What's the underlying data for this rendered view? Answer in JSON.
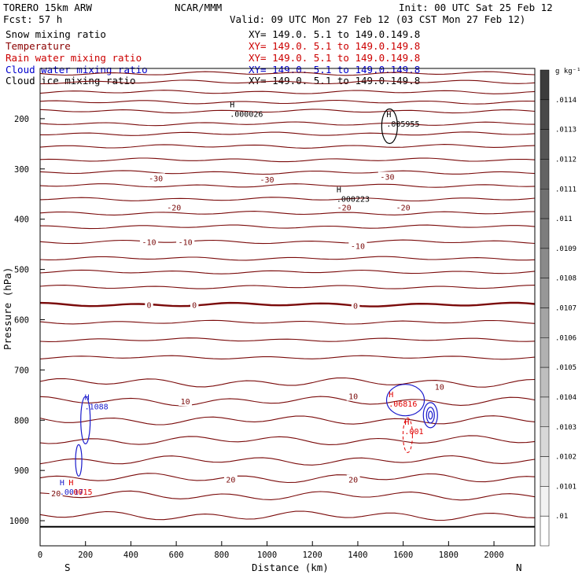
{
  "header": {
    "model": "TORERO   15km ARW",
    "center": "NCAR/MMM",
    "init": "Init: 00 UTC Sat 25 Feb 12",
    "fcst": "Fcst:    57 h",
    "valid": "Valid: 09 UTC Mon 27 Feb 12 (03 CST Mon 27 Feb 12)"
  },
  "legend": [
    {
      "name": "Snow mixing ratio",
      "color": "#000000",
      "xy": "XY= 149.0.   5.1 to 149.0.149.8"
    },
    {
      "name": "Temperature",
      "color": "#8b0000",
      "xy": "XY= 149.0.   5.1 to 149.0.149.8"
    },
    {
      "name": "Rain water mixing ratio",
      "color": "#cc0000",
      "xy": "XY= 149.0.   5.1 to 149.0.149.8"
    },
    {
      "name": "Cloud water mixing ratio",
      "color": "#0000cc",
      "xy": "XY= 149.0.   5.1 to 149.0.149.8"
    },
    {
      "name": "Cloud ice mixing ratio",
      "color": "#000000",
      "xy": "XY= 149.0.   5.1 to 149.0.149.8"
    }
  ],
  "colors": {
    "temperature": "#7a0a0a",
    "rain": "#e00000",
    "cloud_water": "#1a1acc",
    "snow": "#000000",
    "ground": "#000000"
  },
  "chart_data": {
    "type": "contour",
    "xlabel": "Distance (km)",
    "ylabel": "Pressure (hPa)",
    "xlim": [
      0,
      2180
    ],
    "ylim": [
      1050,
      100
    ],
    "x_ticks": [
      0,
      200,
      400,
      600,
      800,
      1000,
      1200,
      1400,
      1600,
      1800,
      2000
    ],
    "y_ticks": [
      200,
      300,
      400,
      500,
      600,
      700,
      800,
      900,
      1000
    ],
    "endpoints": {
      "left": "S",
      "right": "N"
    },
    "colorbar": {
      "unit": "g kg⁻¹",
      "labels": [
        ".0114",
        ".0113",
        ".0112",
        ".0111",
        ".011",
        ".0109",
        ".0108",
        ".0107",
        ".0106",
        ".0105",
        ".0104",
        ".0103",
        ".0102",
        ".0101",
        ".01"
      ]
    },
    "temperature_contours": {
      "interval_c": 5,
      "levels_hpa": [
        110,
        127,
        147,
        167,
        185,
        210,
        230,
        255,
        282,
        307,
        333,
        360,
        388,
        415,
        445,
        478,
        505,
        535,
        570,
        605,
        640,
        675,
        725,
        762,
        800,
        840,
        880,
        915,
        950,
        990
      ],
      "labels": [
        {
          "text": "-30",
          "x": 510,
          "p": 318
        },
        {
          "text": "-30",
          "x": 1000,
          "p": 321
        },
        {
          "text": "-30",
          "x": 1530,
          "p": 315
        },
        {
          "text": "-20",
          "x": 590,
          "p": 376
        },
        {
          "text": "-20",
          "x": 1340,
          "p": 376
        },
        {
          "text": "-20",
          "x": 1600,
          "p": 376
        },
        {
          "text": "-10",
          "x": 480,
          "p": 445
        },
        {
          "text": "-10",
          "x": 640,
          "p": 445
        },
        {
          "text": "-10",
          "x": 1400,
          "p": 453
        },
        {
          "text": "0",
          "x": 480,
          "p": 570
        },
        {
          "text": "0",
          "x": 680,
          "p": 570
        },
        {
          "text": "0",
          "x": 1390,
          "p": 572
        },
        {
          "text": "10",
          "x": 640,
          "p": 762
        },
        {
          "text": "10",
          "x": 1380,
          "p": 752
        },
        {
          "text": "10",
          "x": 1760,
          "p": 733
        },
        {
          "text": "20",
          "x": 840,
          "p": 918
        },
        {
          "text": "20",
          "x": 1380,
          "p": 918
        },
        {
          "text": "20",
          "x": 70,
          "p": 945
        }
      ]
    },
    "maxima": [
      {
        "field": "snow",
        "text": ".000026",
        "x": 850,
        "p": 193
      },
      {
        "field": "snow",
        "text": ".005955",
        "x": 1540,
        "p": 213
      },
      {
        "field": "snow",
        "text": ".000223",
        "x": 1320,
        "p": 362
      },
      {
        "field": "cloud_water",
        "text": ".1088",
        "x": 210,
        "p": 775
      },
      {
        "field": "rain",
        "text": ".06816",
        "x": 1550,
        "p": 770
      },
      {
        "field": "cloud_water",
        "text": ".0017",
        "x": 100,
        "p": 945
      },
      {
        "field": "rain",
        "text": ".0015",
        "x": 140,
        "p": 945
      },
      {
        "field": "rain",
        "text": ".001",
        "x": 1620,
        "p": 825
      }
    ]
  }
}
